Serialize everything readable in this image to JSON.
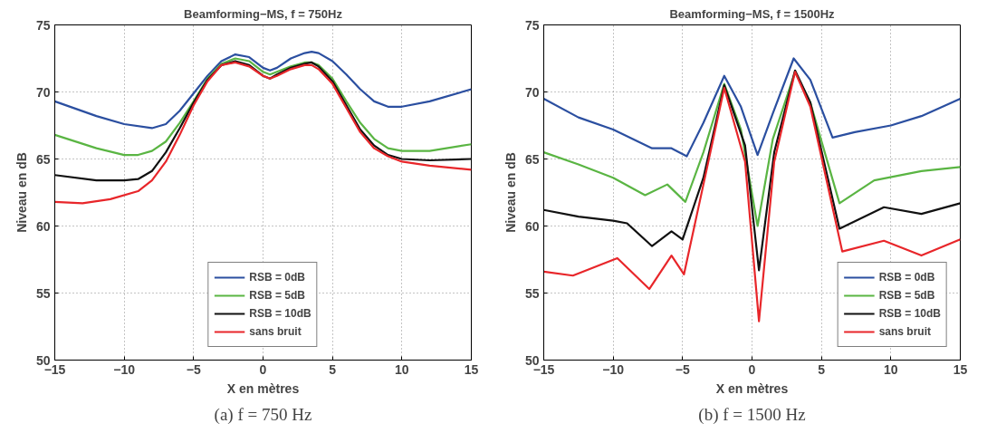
{
  "chart_data": [
    {
      "type": "line",
      "title": "Beamforming−MS, f = 750Hz",
      "xlabel": "X en mètres",
      "ylabel": "Niveau en dB",
      "annotations": [
        "(a) f = 750 Hz"
      ],
      "xlim": [
        -15,
        15
      ],
      "ylim": [
        50,
        75
      ],
      "xticks": [
        -15,
        -10,
        -5,
        0,
        5,
        10,
        15
      ],
      "yticks": [
        50,
        55,
        60,
        65,
        70,
        75
      ],
      "grid": true,
      "legend": "bottom",
      "line_style": "solid",
      "series": [
        {
          "name": "RSB = 0dB",
          "color": "#2b4fa0",
          "x": [
            -15,
            -12,
            -10,
            -8,
            -7,
            -6,
            -5,
            -4,
            -3,
            -2,
            -1,
            0,
            0.5,
            1,
            2,
            3,
            3.5,
            4,
            5,
            6,
            7,
            8,
            9,
            10,
            12,
            15
          ],
          "values": [
            69.3,
            68.2,
            67.6,
            67.3,
            67.6,
            68.6,
            69.9,
            71.2,
            72.3,
            72.8,
            72.6,
            71.8,
            71.6,
            71.8,
            72.5,
            72.9,
            73.0,
            72.9,
            72.3,
            71.3,
            70.2,
            69.3,
            68.9,
            68.9,
            69.3,
            70.2
          ]
        },
        {
          "name": "RSB = 5dB",
          "color": "#5ab543",
          "x": [
            -15,
            -12,
            -10,
            -9,
            -8,
            -7,
            -6,
            -5,
            -4,
            -3,
            -2,
            -1,
            0,
            0.5,
            1,
            2,
            3,
            3.5,
            4,
            5,
            6,
            7,
            8,
            9,
            10,
            12,
            15
          ],
          "values": [
            66.8,
            65.8,
            65.3,
            65.3,
            65.6,
            66.3,
            67.7,
            69.3,
            71.0,
            72.1,
            72.5,
            72.3,
            71.5,
            71.3,
            71.5,
            71.9,
            72.2,
            72.2,
            72.0,
            71.0,
            69.3,
            67.7,
            66.5,
            65.8,
            65.6,
            65.6,
            66.1
          ]
        },
        {
          "name": "RSB = 10dB",
          "color": "#111111",
          "x": [
            -15,
            -12,
            -10,
            -9,
            -8,
            -7,
            -6,
            -5,
            -4,
            -3,
            -2,
            -1,
            0,
            0.5,
            1,
            2,
            3,
            3.5,
            4,
            5,
            6,
            7,
            8,
            9,
            10,
            12,
            15
          ],
          "values": [
            63.8,
            63.4,
            63.4,
            63.5,
            64.1,
            65.5,
            67.3,
            69.2,
            70.9,
            72.0,
            72.3,
            72.0,
            71.2,
            71.0,
            71.3,
            71.8,
            72.1,
            72.2,
            71.9,
            70.8,
            69.0,
            67.2,
            66.0,
            65.3,
            65.0,
            64.9,
            65.0
          ]
        },
        {
          "name": "sans bruit",
          "color": "#e8262a",
          "x": [
            -15,
            -13,
            -11,
            -9,
            -8,
            -7,
            -6,
            -5,
            -4,
            -3,
            -2,
            -1,
            0,
            0.5,
            1,
            2,
            3,
            3.5,
            4,
            5,
            6,
            7,
            8,
            9,
            10,
            12,
            15
          ],
          "values": [
            61.8,
            61.7,
            62.0,
            62.6,
            63.4,
            64.8,
            66.8,
            69.0,
            70.8,
            72.0,
            72.2,
            71.9,
            71.2,
            71.0,
            71.2,
            71.7,
            72.0,
            72.0,
            71.7,
            70.6,
            68.8,
            67.0,
            65.8,
            65.2,
            64.8,
            64.5,
            64.2
          ]
        }
      ]
    },
    {
      "type": "line",
      "title": "Beamforming−MS, f = 1500Hz",
      "xlabel": "X en mètres",
      "ylabel": "Niveau en dB",
      "annotations": [
        "(b) f = 1500 Hz"
      ],
      "xlim": [
        -15,
        15
      ],
      "ylim": [
        50,
        75
      ],
      "xticks": [
        -15,
        -10,
        -5,
        0,
        5,
        10,
        15
      ],
      "yticks": [
        50,
        55,
        60,
        65,
        70,
        75
      ],
      "grid": true,
      "legend": "bottom right",
      "line_style": "solid",
      "series": [
        {
          "name": "RSB = 0dB",
          "color": "#2b4fa0",
          "x": [
            -15,
            -12.5,
            -10,
            -7.2,
            -5.8,
            -4.7,
            -3.5,
            -2,
            -0.8,
            0.4,
            1.5,
            3,
            4.2,
            5.8,
            7.4,
            10,
            12.2,
            15
          ],
          "values": [
            69.5,
            68.1,
            67.2,
            65.8,
            65.8,
            65.2,
            67.7,
            71.2,
            68.9,
            65.3,
            68.4,
            72.5,
            70.9,
            66.6,
            67.0,
            67.5,
            68.2,
            69.5
          ]
        },
        {
          "name": "RSB = 5dB",
          "color": "#5ab543",
          "x": [
            -15,
            -12.5,
            -10,
            -7.7,
            -6.1,
            -4.8,
            -3.5,
            -2,
            -0.8,
            0.4,
            1.5,
            3.1,
            4.2,
            6.3,
            8.8,
            12.2,
            15
          ],
          "values": [
            65.5,
            64.6,
            63.6,
            62.3,
            63.1,
            61.8,
            65.5,
            70.6,
            67.2,
            60.0,
            66.5,
            71.5,
            69.2,
            61.7,
            63.4,
            64.1,
            64.4
          ]
        },
        {
          "name": "RSB = 10dB",
          "color": "#111111",
          "x": [
            -15,
            -12.5,
            -10,
            -9,
            -7.2,
            -5.8,
            -5,
            -3.5,
            -2,
            -0.5,
            0.5,
            1.6,
            3.1,
            4.2,
            6.3,
            9.5,
            12.2,
            15
          ],
          "values": [
            61.2,
            60.7,
            60.4,
            60.2,
            58.5,
            59.6,
            59.0,
            63.6,
            70.5,
            66.0,
            56.7,
            65.5,
            71.6,
            69.2,
            59.8,
            61.4,
            60.9,
            61.7
          ]
        },
        {
          "name": "sans bruit",
          "color": "#e8262a",
          "x": [
            -15,
            -12.9,
            -9.7,
            -7.4,
            -5.8,
            -4.9,
            -3.5,
            -2,
            -0.5,
            0.5,
            1.6,
            3.1,
            4.2,
            6.5,
            9.5,
            12.2,
            15
          ],
          "values": [
            56.6,
            56.3,
            57.6,
            55.3,
            57.8,
            56.4,
            63.1,
            70.3,
            64.8,
            52.9,
            64.8,
            71.5,
            68.9,
            58.1,
            58.9,
            57.8,
            59.0
          ]
        }
      ]
    }
  ]
}
